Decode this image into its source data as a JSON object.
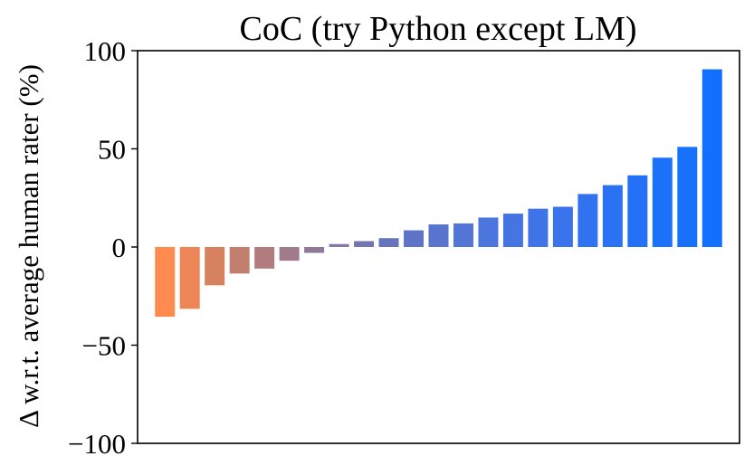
{
  "chart_data": {
    "type": "bar",
    "title": "CoC (try Python except LM)",
    "xlabel": "",
    "ylabel": "Δ w.r.t. average human rater (%)",
    "ylim": [
      -100,
      100
    ],
    "yticks": [
      100,
      50,
      0,
      -50,
      -100
    ],
    "ytick_labels": [
      "100",
      "50",
      "0",
      "−50",
      "−100"
    ],
    "xticks_visible": false,
    "grid": false,
    "values": [
      -35.5,
      -31.5,
      -19.5,
      -13.5,
      -11,
      -7,
      -3,
      1.5,
      3,
      4.5,
      8.5,
      11.5,
      12,
      15,
      17,
      19.5,
      20.5,
      27,
      31.5,
      36.5,
      45.5,
      51,
      90.5
    ],
    "colors": [
      "#ff8a4f",
      "#ee8556",
      "#d6825f",
      "#c27e6f",
      "#b27c7f",
      "#a17b8c",
      "#917899",
      "#8277a6",
      "#7375b2",
      "#6674bc",
      "#5f74c7",
      "#5874cf",
      "#5275d6",
      "#4b76dd",
      "#4575e3",
      "#3f74e8",
      "#3a73ec",
      "#3072f0",
      "#2a72f3",
      "#2271f6",
      "#1b71f9",
      "#1771fb",
      "#1171fe"
    ]
  }
}
